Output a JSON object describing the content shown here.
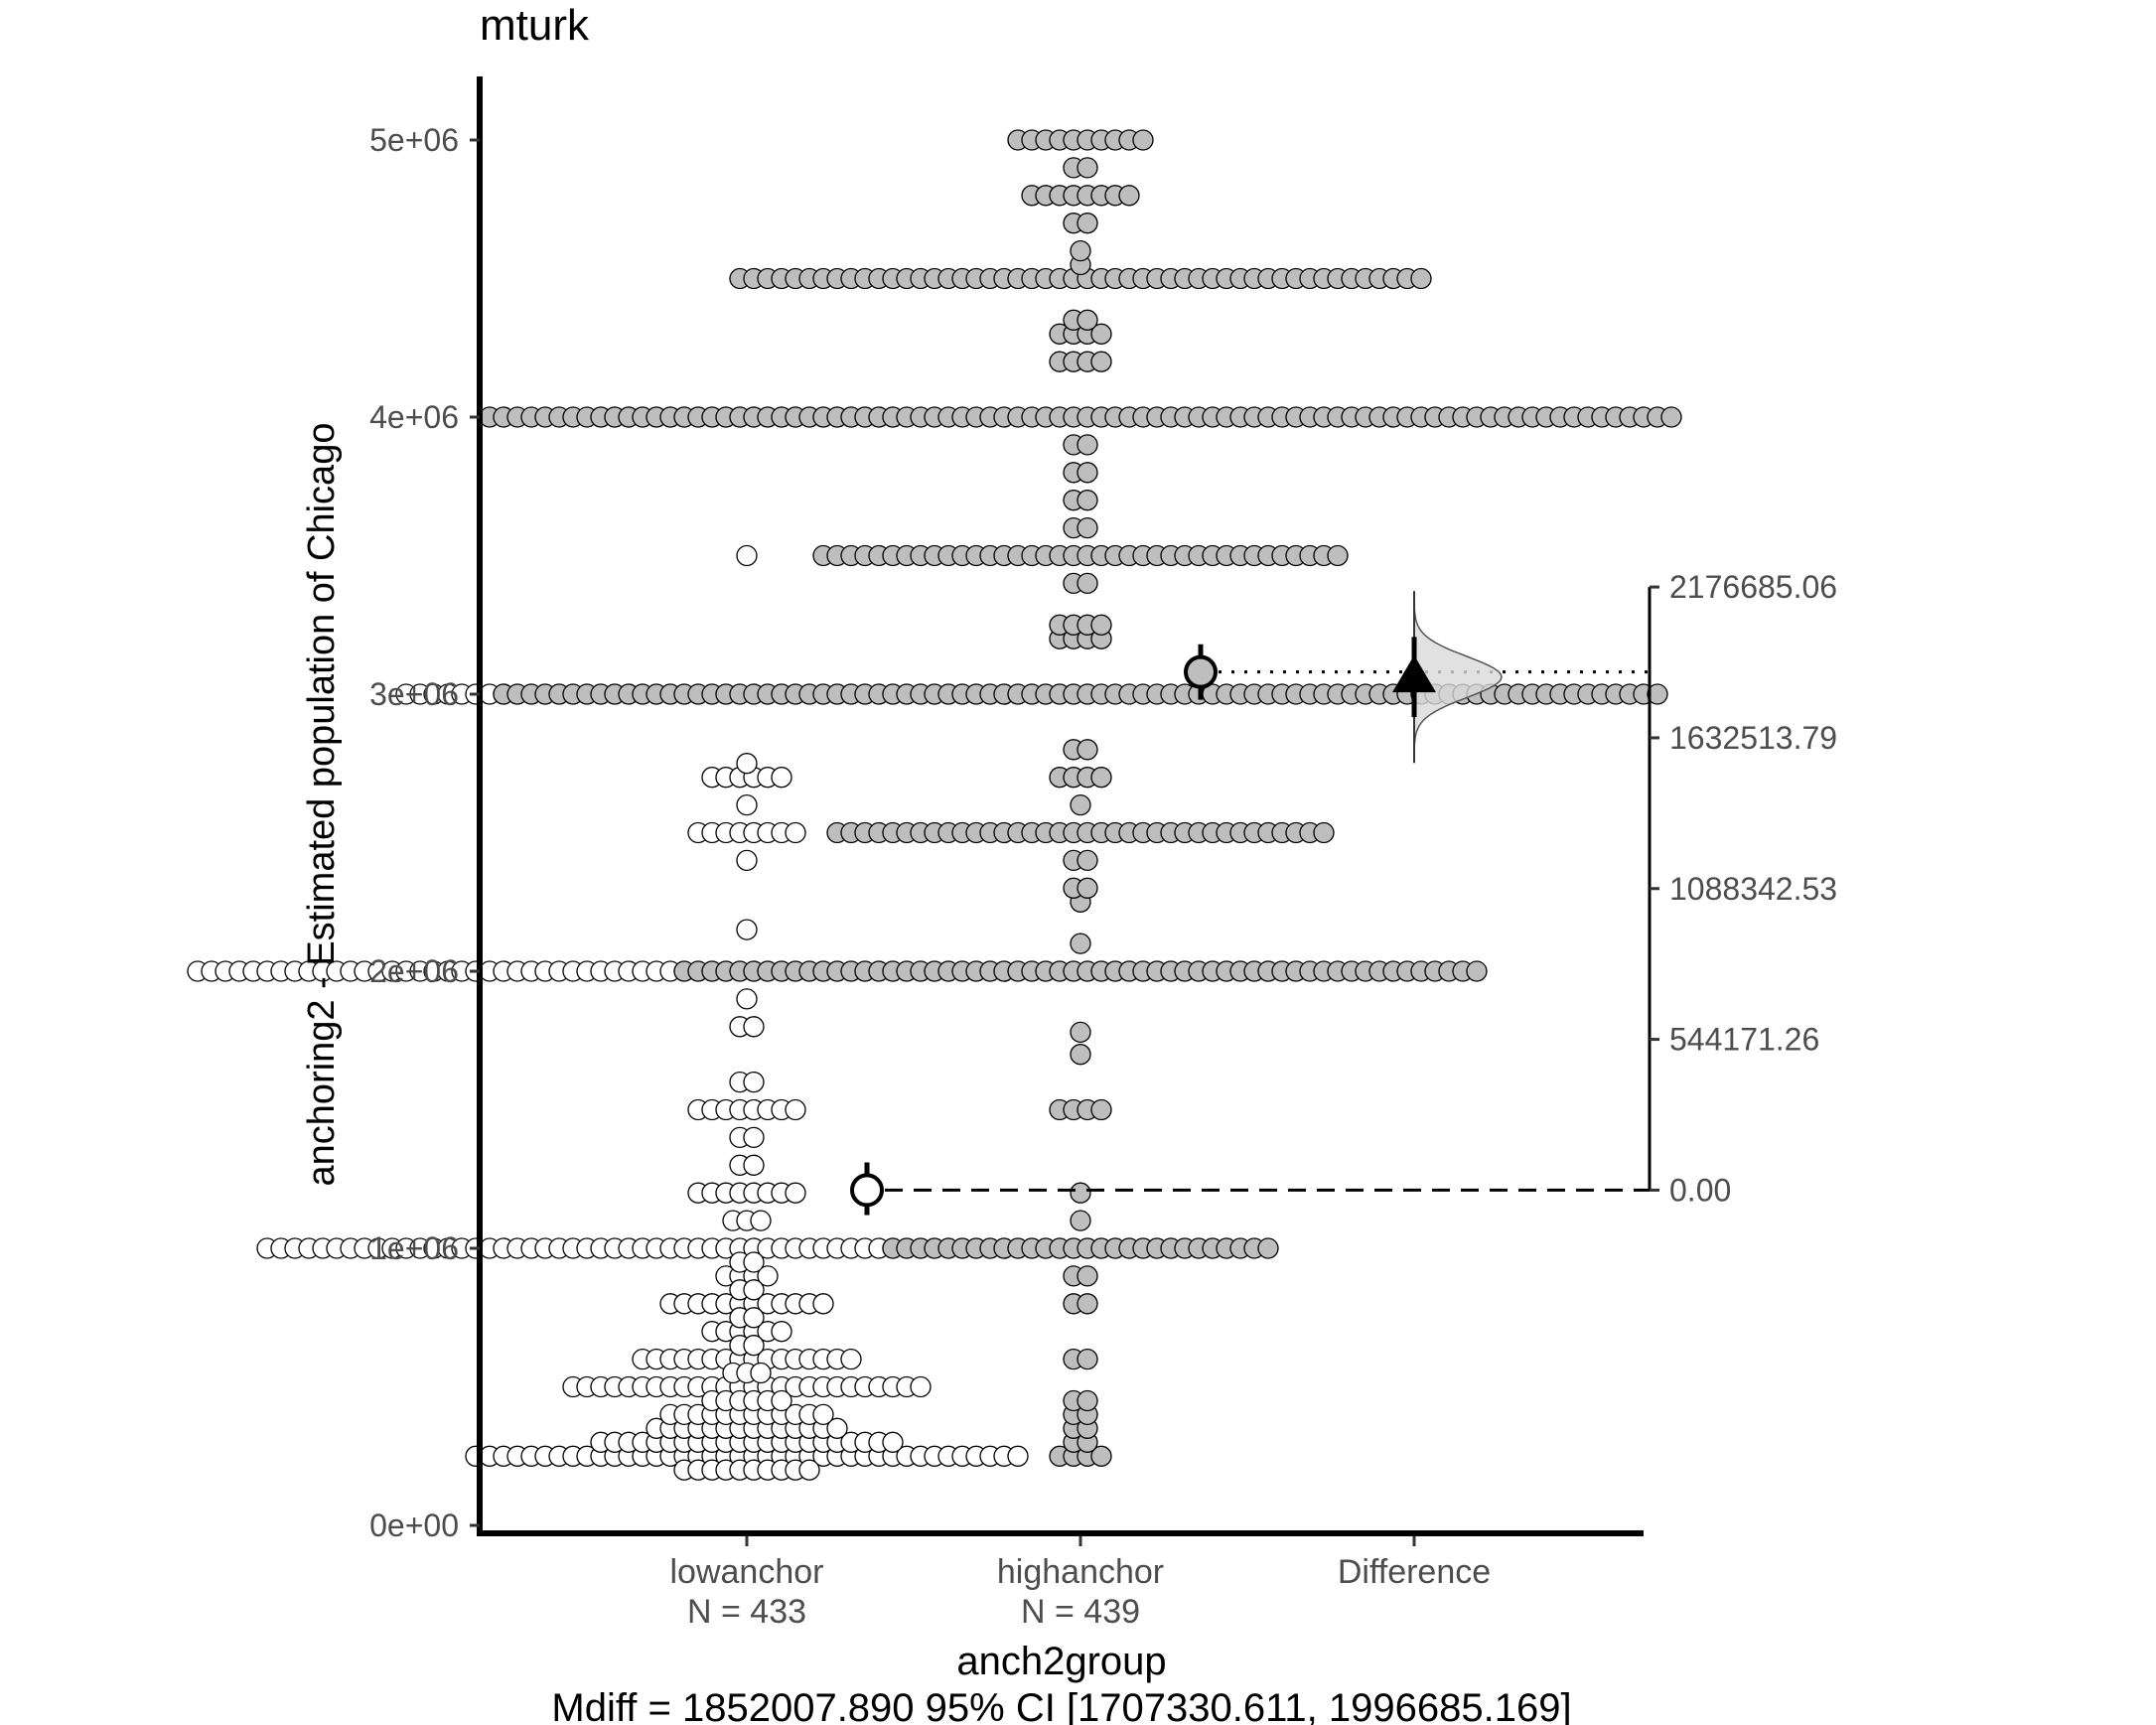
{
  "chart_data": {
    "type": "scatter",
    "title": "mturk",
    "xlabel": "anch2group",
    "ylabel": "anchoring2 - Estimated population of Chicago",
    "caption": "Mdiff = 1852007.890 95% CI [1707330.611, 1996685.169]",
    "categories": [
      "lowanchor",
      "highanchor",
      "Difference"
    ],
    "n_labels": [
      "N =  433",
      "N =  439",
      ""
    ],
    "ylim": [
      0,
      5000000
    ],
    "y_ticks": [
      0,
      1000000,
      2000000,
      3000000,
      4000000,
      5000000
    ],
    "y_tick_labels": [
      "0e+00",
      "1e+06",
      "2e+06",
      "3e+06",
      "4e+06",
      "5e+06"
    ],
    "diff_axis_ticks": [
      0,
      544171.26,
      1088342.53,
      1632513.79,
      2176685.06
    ],
    "diff_axis_labels": [
      "0.00",
      "544171.26",
      "1088342.53",
      "1632513.79",
      "2176685.06"
    ],
    "series": [
      {
        "name": "lowanchor",
        "fill": "#ffffff",
        "n": 433,
        "mean": 1210000,
        "ci": [
          1120000,
          1310000
        ],
        "values_by_level": [
          [
            250000,
            40
          ],
          [
            300000,
            22
          ],
          [
            350000,
            14
          ],
          [
            400000,
            12
          ],
          [
            500000,
            26
          ],
          [
            600000,
            16
          ],
          [
            700000,
            6
          ],
          [
            800000,
            12
          ],
          [
            900000,
            4
          ],
          [
            1000000,
            70
          ],
          [
            1200000,
            8
          ],
          [
            1500000,
            8
          ],
          [
            1600000,
            2
          ],
          [
            1800000,
            2
          ],
          [
            2000000,
            80
          ],
          [
            2500000,
            8
          ],
          [
            2700000,
            6
          ],
          [
            3000000,
            50
          ],
          [
            4000000,
            22
          ],
          [
            3500000,
            1
          ],
          [
            2400000,
            1
          ],
          [
            2150000,
            1
          ],
          [
            1900000,
            1
          ],
          [
            1300000,
            2
          ],
          [
            1100000,
            3
          ],
          [
            450000,
            6
          ],
          [
            550000,
            3
          ],
          [
            650000,
            2
          ],
          [
            750000,
            2
          ],
          [
            850000,
            2
          ],
          [
            950000,
            2
          ],
          [
            2600000,
            1
          ],
          [
            2750000,
            1
          ],
          [
            1400000,
            2
          ],
          [
            200000,
            10
          ]
        ]
      },
      {
        "name": "highanchor",
        "fill": "#bebebe",
        "n": 439,
        "mean": 3080000,
        "ci": [
          2980000,
          3180000
        ],
        "values_by_level": [
          [
            250000,
            4
          ],
          [
            300000,
            2
          ],
          [
            350000,
            2
          ],
          [
            400000,
            2
          ],
          [
            450000,
            2
          ],
          [
            600000,
            2
          ],
          [
            800000,
            2
          ],
          [
            900000,
            2
          ],
          [
            1000000,
            28
          ],
          [
            1100000,
            1
          ],
          [
            1200000,
            1
          ],
          [
            1500000,
            4
          ],
          [
            1700000,
            1
          ],
          [
            1780000,
            1
          ],
          [
            2000000,
            58
          ],
          [
            2100000,
            1
          ],
          [
            2250000,
            1
          ],
          [
            2300000,
            2
          ],
          [
            2400000,
            2
          ],
          [
            2500000,
            36
          ],
          [
            2600000,
            1
          ],
          [
            2700000,
            4
          ],
          [
            2800000,
            2
          ],
          [
            3000000,
            84
          ],
          [
            3200000,
            4
          ],
          [
            3250000,
            4
          ],
          [
            3400000,
            2
          ],
          [
            3500000,
            38
          ],
          [
            3600000,
            2
          ],
          [
            3700000,
            2
          ],
          [
            3800000,
            2
          ],
          [
            3900000,
            2
          ],
          [
            4000000,
            86
          ],
          [
            4200000,
            4
          ],
          [
            4300000,
            4
          ],
          [
            4350000,
            2
          ],
          [
            4500000,
            50
          ],
          [
            4550000,
            1
          ],
          [
            4600000,
            1
          ],
          [
            4700000,
            2
          ],
          [
            4800000,
            8
          ],
          [
            4900000,
            2
          ],
          [
            5000000,
            10
          ]
        ]
      }
    ],
    "difference": {
      "name": "Difference",
      "mdiff": 1852007.89,
      "ci": [
        1707330.611,
        1996685.169
      ]
    },
    "grid": false,
    "legend": "none"
  }
}
